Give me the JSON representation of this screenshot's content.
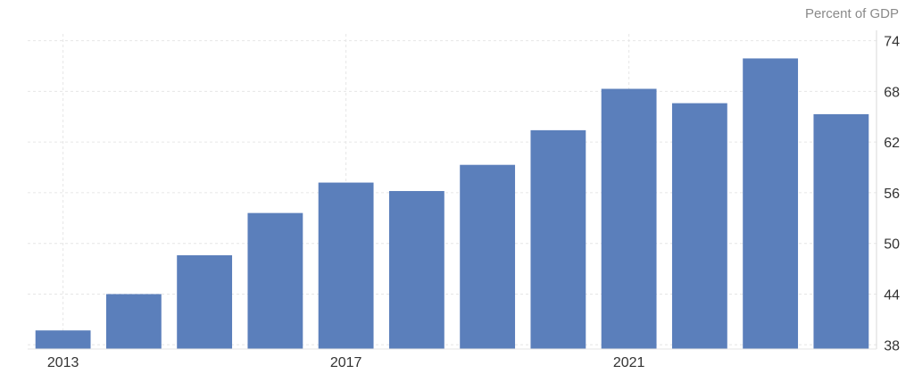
{
  "chart_data": {
    "type": "bar",
    "unit_label": "Percent of GDP",
    "categories": [
      "2013",
      "2014",
      "2015",
      "2016",
      "2017",
      "2018",
      "2019",
      "2020",
      "2021",
      "2022",
      "2023",
      "2024"
    ],
    "values": [
      39.7,
      44.0,
      48.6,
      53.6,
      57.2,
      56.2,
      59.3,
      63.4,
      68.3,
      66.6,
      71.9,
      65.3
    ],
    "x_tick_labels": [
      {
        "category": "2013",
        "label": "2013"
      },
      {
        "category": "2017",
        "label": "2017"
      },
      {
        "category": "2021",
        "label": "2021"
      }
    ],
    "y_ticks": [
      38,
      44,
      50,
      56,
      62,
      68,
      74
    ],
    "ylim": [
      37.5,
      74.8
    ],
    "grid": true,
    "bar_color": "#5b7fbb"
  }
}
